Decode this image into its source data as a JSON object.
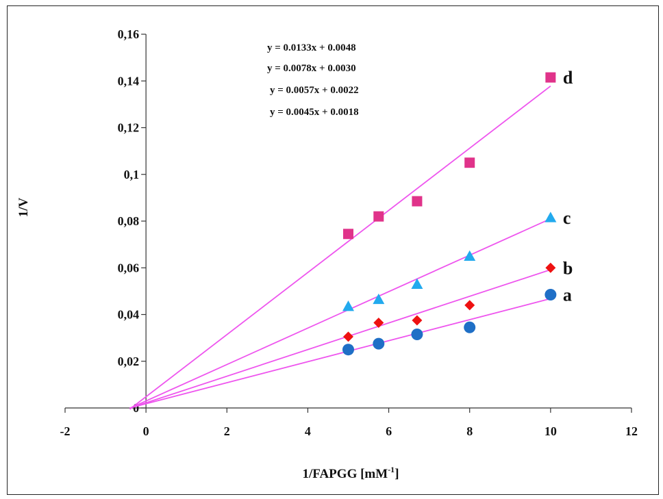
{
  "chart_data": {
    "type": "scatter",
    "xlabel": "1/FAPGG [mM",
    "xlabel_sup": "-1",
    "xlabel_end": "]",
    "ylabel": "1/V",
    "xlim": [
      -2,
      12
    ],
    "ylim": [
      0,
      0.16
    ],
    "x_ticks": [
      -2,
      0,
      2,
      4,
      6,
      8,
      10,
      12
    ],
    "x_tick_labels": [
      "-2",
      "0",
      "2",
      "4",
      "6",
      "8",
      "10",
      "12"
    ],
    "y_ticks": [
      0,
      0.02,
      0.04,
      0.06,
      0.08,
      0.1,
      0.12,
      0.14,
      0.16
    ],
    "y_tick_labels": [
      "0",
      "0,02",
      "0,04",
      "0,06",
      "0,08",
      "0,1",
      "0,12",
      "0,14",
      "0,16"
    ],
    "grid": false,
    "equations": [
      "y = 0.0133x + 0.0048",
      "y = 0.0078x + 0.0030",
      "y = 0.0057x + 0.0022",
      "y = 0.0045x + 0.0018"
    ],
    "line_color": "#ee55ee",
    "series": [
      {
        "name": "a",
        "marker": "circle",
        "color": "#1f6fc6",
        "x": [
          5,
          5.75,
          6.7,
          8,
          10
        ],
        "y": [
          0.025,
          0.0275,
          0.0315,
          0.0345,
          0.0485
        ],
        "fit": {
          "slope": 0.0045,
          "intercept": 0.0018
        }
      },
      {
        "name": "b",
        "marker": "diamond",
        "color": "#ee1111",
        "x": [
          5,
          5.75,
          6.7,
          8,
          10
        ],
        "y": [
          0.0305,
          0.0365,
          0.0375,
          0.044,
          0.06
        ],
        "fit": {
          "slope": 0.0057,
          "intercept": 0.0022
        }
      },
      {
        "name": "c",
        "marker": "triangle",
        "color": "#22aaee",
        "x": [
          5,
          5.75,
          6.7,
          8,
          10
        ],
        "y": [
          0.0435,
          0.0465,
          0.053,
          0.065,
          0.0815
        ],
        "fit": {
          "slope": 0.0078,
          "intercept": 0.003
        }
      },
      {
        "name": "d",
        "marker": "square",
        "color": "#e0338a",
        "x": [
          5,
          5.75,
          6.7,
          8,
          10
        ],
        "y": [
          0.0745,
          0.082,
          0.0885,
          0.105,
          0.1415
        ],
        "fit": {
          "slope": 0.0133,
          "intercept": 0.0048
        }
      }
    ]
  }
}
